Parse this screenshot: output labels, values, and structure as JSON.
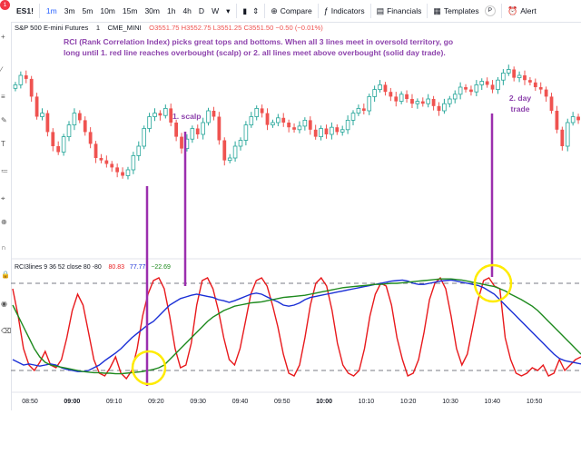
{
  "toolbar": {
    "symbol": "ES1!",
    "notification_count": "1",
    "timeframes": [
      "1m",
      "3m",
      "5m",
      "10m",
      "15m",
      "30m",
      "1h",
      "4h",
      "D",
      "W"
    ],
    "active_timeframe": "1m",
    "compare_label": "Compare",
    "indicators_label": "Indicators",
    "financials_label": "Financials",
    "templates_label": "Templates",
    "alert_label": "Alert",
    "p_label": "P"
  },
  "legend": {
    "title": "S&P 500 E-mini Futures",
    "interval": "1",
    "exchange": "CME_MINI",
    "ohlc": "O3551.75  H3552.75  L3551.25  C3551.50  −0.50 (−0.01%)"
  },
  "annotations": {
    "main": "RCI (Rank Correlation Index) picks great tops and bottoms.  When all 3 lines meet in oversold territory, go long until 1. red line reaches overbought (scalp) or 2. all lines meet above overbought (solid day trade).",
    "scalp": "1. scalp",
    "day_trade": "2. day trade"
  },
  "colors": {
    "bull": "#26a69a",
    "bear": "#ef5350",
    "rci_fast": "#e8191c",
    "rci_mid": "#1a2fd6",
    "rci_slow": "#1e8a1e",
    "marker": "#9b2fae",
    "highlight": "#ffeb00"
  },
  "chart_data": [
    {
      "type": "candlestick",
      "title": "S&P 500 E-mini Futures, 1, CME_MINI",
      "x_ticks": [
        "08:50",
        "09:00",
        "09:10",
        "09:20",
        "09:30",
        "09:40",
        "09:50",
        "10:00",
        "10:10",
        "10:20",
        "10:30",
        "10:40",
        "10:50"
      ],
      "ohlc": {
        "open": 3551.75,
        "high": 3552.75,
        "low": 3551.25,
        "close": 3551.5,
        "change": -0.5,
        "change_pct": -0.01
      },
      "shape": [
        0.82,
        0.9,
        0.87,
        0.72,
        0.55,
        0.58,
        0.42,
        0.3,
        0.25,
        0.38,
        0.48,
        0.58,
        0.52,
        0.42,
        0.32,
        0.2,
        0.18,
        0.15,
        0.12,
        0.08,
        0.05,
        0.1,
        0.22,
        0.3,
        0.45,
        0.55,
        0.58,
        0.56,
        0.62,
        0.5,
        0.38,
        0.28,
        0.36,
        0.45,
        0.4,
        0.5,
        0.6,
        0.55,
        0.35,
        0.18,
        0.2,
        0.3,
        0.35,
        0.48,
        0.55,
        0.62,
        0.58,
        0.48,
        0.5,
        0.54,
        0.5,
        0.46,
        0.44,
        0.47,
        0.52,
        0.44,
        0.38,
        0.45,
        0.4,
        0.46,
        0.42,
        0.44,
        0.52,
        0.58,
        0.62,
        0.6,
        0.72,
        0.78,
        0.82,
        0.76,
        0.72,
        0.68,
        0.74,
        0.7,
        0.66,
        0.68,
        0.66,
        0.7,
        0.64,
        0.6,
        0.66,
        0.7,
        0.74,
        0.8,
        0.78,
        0.76,
        0.82,
        0.85,
        0.82,
        0.78,
        0.86,
        0.92,
        0.95,
        0.88,
        0.9,
        0.86,
        0.84,
        0.8,
        0.78,
        0.72,
        0.6,
        0.44,
        0.3,
        0.5,
        0.55,
        0.52
      ]
    },
    {
      "type": "line",
      "title": "RCI3lines 9 36 52 close 80 -80",
      "values_label": [
        "80.83",
        "77.77",
        "−22.69"
      ],
      "ylim": [
        -100,
        100
      ],
      "levels": [
        80,
        -80
      ],
      "series": [
        {
          "name": "9",
          "values": [
            70,
            20,
            -40,
            -70,
            -80,
            -65,
            -45,
            -70,
            -75,
            -60,
            -20,
            30,
            60,
            40,
            -10,
            -60,
            -85,
            -90,
            -75,
            -55,
            -85,
            -95,
            -80,
            -40,
            20,
            60,
            85,
            90,
            70,
            20,
            -40,
            -75,
            -70,
            -30,
            40,
            85,
            90,
            70,
            30,
            -20,
            -60,
            -70,
            -40,
            10,
            60,
            85,
            90,
            75,
            40,
            0,
            -50,
            -85,
            -90,
            -70,
            -20,
            40,
            80,
            90,
            75,
            30,
            -30,
            -70,
            -85,
            -90,
            -80,
            -40,
            20,
            60,
            80,
            75,
            40,
            -20,
            -60,
            -90,
            -85,
            -60,
            -10,
            50,
            80,
            90,
            70,
            20,
            -40,
            -70,
            -50,
            0,
            50,
            85,
            90,
            75,
            70,
            -20,
            -60,
            -85,
            -90,
            -85,
            -75,
            -80,
            -70,
            -90,
            -85,
            -60,
            -80,
            -70,
            -60,
            -55
          ]
        },
        {
          "name": "36",
          "values": [
            -60,
            -65,
            -70,
            -68,
            -70,
            -72,
            -70,
            -68,
            -70,
            -75,
            -78,
            -80,
            -82,
            -82,
            -80,
            -75,
            -70,
            -62,
            -55,
            -48,
            -40,
            -30,
            -20,
            -12,
            -4,
            4,
            10,
            20,
            30,
            40,
            46,
            52,
            55,
            58,
            60,
            58,
            56,
            54,
            50,
            48,
            45,
            48,
            52,
            56,
            60,
            62,
            60,
            55,
            50,
            46,
            40,
            38,
            40,
            44,
            50,
            54,
            56,
            58,
            60,
            62,
            64,
            66,
            68,
            70,
            72,
            74,
            76,
            78,
            80,
            82,
            84,
            85,
            86,
            84,
            80,
            78,
            78,
            80,
            82,
            84,
            85,
            86,
            84,
            82,
            80,
            78,
            76,
            72,
            66,
            60,
            50,
            40,
            30,
            20,
            10,
            0,
            -10,
            -20,
            -30,
            -40,
            -50,
            -58,
            -62,
            -64,
            -66,
            -68
          ]
        },
        {
          "name": "52",
          "values": [
            40,
            20,
            0,
            -20,
            -40,
            -55,
            -65,
            -70,
            -72,
            -74,
            -76,
            -78,
            -80,
            -82,
            -83,
            -84,
            -84,
            -85,
            -85,
            -86,
            -86,
            -85,
            -84,
            -83,
            -82,
            -80,
            -78,
            -75,
            -70,
            -60,
            -50,
            -40,
            -30,
            -20,
            -10,
            0,
            10,
            18,
            24,
            30,
            34,
            38,
            40,
            42,
            44,
            45,
            46,
            48,
            50,
            52,
            54,
            55,
            56,
            57,
            58,
            60,
            62,
            64,
            66,
            68,
            70,
            72,
            73,
            74,
            75,
            76,
            77,
            78,
            78,
            79,
            80,
            80,
            81,
            82,
            83,
            84,
            85,
            86,
            87,
            88,
            88,
            88,
            87,
            86,
            84,
            82,
            80,
            78,
            76,
            74,
            70,
            66,
            60,
            55,
            50,
            44,
            38,
            30,
            20,
            10,
            0,
            -10,
            -20,
            -30,
            -40,
            -50
          ]
        }
      ]
    }
  ]
}
